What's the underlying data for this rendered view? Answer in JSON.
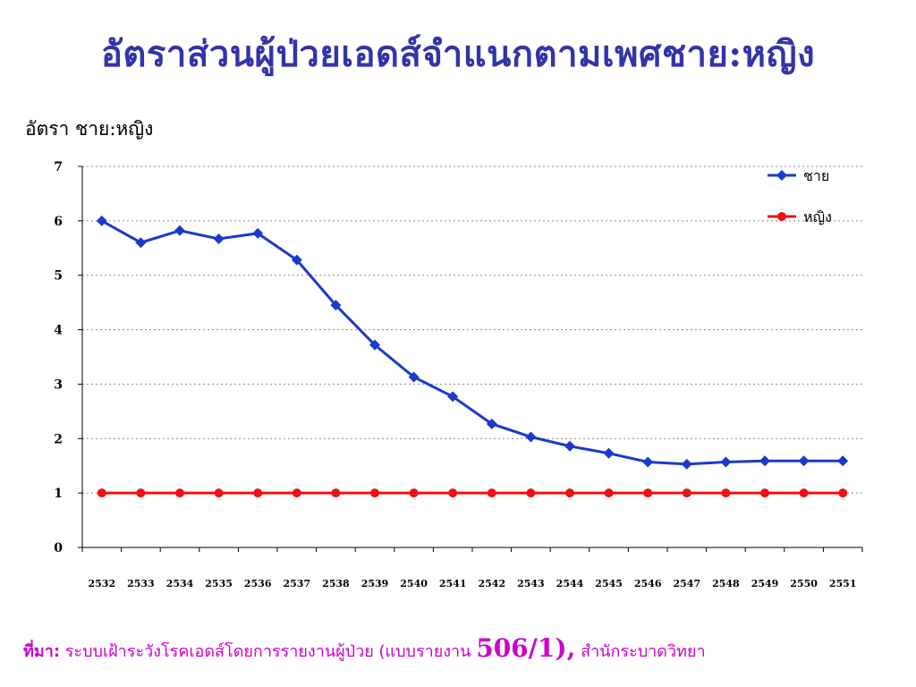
{
  "title": "อัตราส่วนผู้ป่วยเอดส์จำแนกตามเพศชาย:หญิง",
  "source": {
    "label": "ที่มา:",
    "text_before": "ระบบเฝ้าระวังโรคเอดส์โดยการรายงานผู้ป่วย (แบบรายงาน",
    "report_no": "506/1),",
    "text_after": "สำนักระบาดวิทยา"
  },
  "chart_data": {
    "type": "line",
    "title": "",
    "ylabel": "อัตรา ชาย:หญิง",
    "xlabel": "",
    "ylim": [
      0,
      7
    ],
    "yticks": [
      "0",
      "1",
      "2",
      "3",
      "4",
      "5",
      "6",
      "7"
    ],
    "grid": true,
    "legend_position": "top-right",
    "categories": [
      "2532",
      "2533",
      "2534",
      "2535",
      "2536",
      "2537",
      "2538",
      "2539",
      "2540",
      "2541",
      "2542",
      "2543",
      "2544",
      "2545",
      "2546",
      "2547",
      "2548",
      "2549",
      "2550",
      "2551"
    ],
    "series": [
      {
        "name": "ชาย",
        "color": "#1a3acc",
        "marker": "diamond",
        "values": [
          6.0,
          5.6,
          5.82,
          5.67,
          5.77,
          5.28,
          4.45,
          3.72,
          3.13,
          2.77,
          2.27,
          2.03,
          1.86,
          1.73,
          1.57,
          1.53,
          1.57,
          1.59,
          1.59,
          1.59
        ]
      },
      {
        "name": "หญิง",
        "color": "#ee1111",
        "marker": "circle",
        "values": [
          1,
          1,
          1,
          1,
          1,
          1,
          1,
          1,
          1,
          1,
          1,
          1,
          1,
          1,
          1,
          1,
          1,
          1,
          1,
          1
        ]
      }
    ]
  }
}
